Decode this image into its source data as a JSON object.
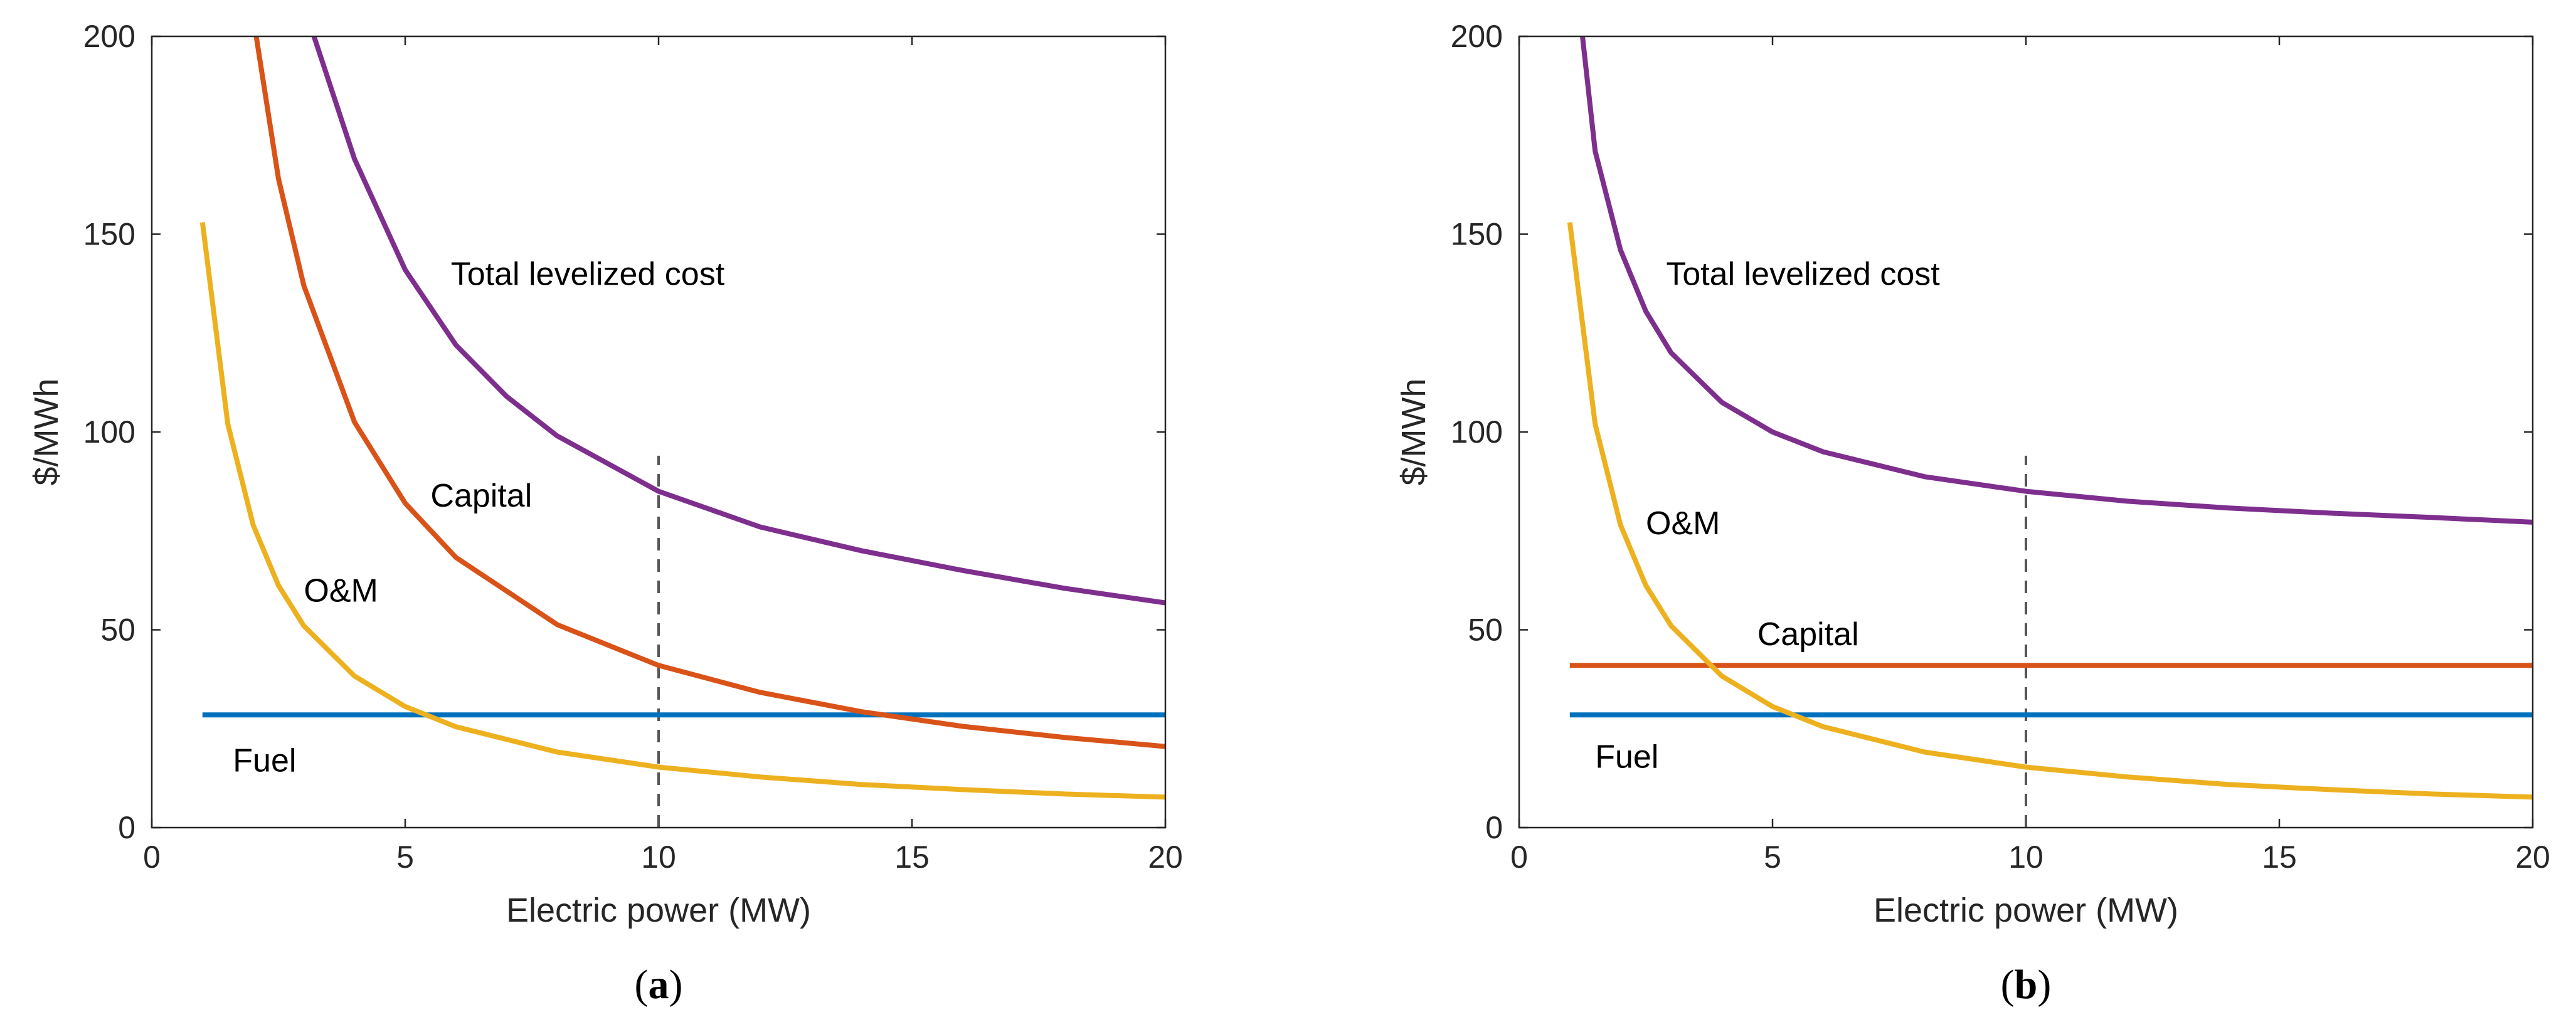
{
  "chart_data": [
    {
      "id": "a",
      "type": "line",
      "panel_label": "a",
      "xlabel": "Electric power (MW)",
      "ylabel": "$/MWh",
      "xlim": [
        0,
        20
      ],
      "ylim": [
        0,
        200
      ],
      "xticks": [
        0,
        5,
        10,
        15,
        20
      ],
      "yticks": [
        0,
        50,
        100,
        150,
        200
      ],
      "series": [
        {
          "name": "Fuel",
          "color": "#0072BD",
          "x": [
            1,
            20
          ],
          "y": [
            28.5,
            28.5
          ]
        },
        {
          "name": "Capital",
          "color": "#D95319",
          "x": [
            2,
            2.5,
            3,
            4,
            5,
            6,
            8,
            10,
            12,
            14,
            16,
            18,
            20
          ],
          "y": [
            205,
            164,
            137,
            102.5,
            82,
            68.3,
            51.3,
            41,
            34.2,
            29.3,
            25.6,
            22.8,
            20.5
          ]
        },
        {
          "name": "O&M",
          "color": "#EDB120",
          "x": [
            1,
            1.5,
            2,
            2.5,
            3,
            4,
            5,
            6,
            8,
            10,
            12,
            14,
            16,
            18,
            20
          ],
          "y": [
            153,
            102,
            76.5,
            61.2,
            51,
            38.3,
            30.6,
            25.5,
            19.1,
            15.3,
            12.8,
            10.9,
            9.6,
            8.5,
            7.7
          ]
        },
        {
          "name": "Total levelized cost",
          "color": "#7E2F8E",
          "x": [
            3.2,
            4,
            5,
            6,
            7,
            8,
            10,
            12,
            14,
            16,
            18,
            20
          ],
          "y": [
            200,
            169,
            141,
            122,
            109,
            99,
            85,
            76,
            70,
            65,
            60.5,
            56.8
          ]
        }
      ],
      "vline": {
        "x": 10,
        "y_top": 94
      },
      "annotations": [
        {
          "text": "Total levelized cost",
          "x": 5.9,
          "y": 140
        },
        {
          "text": "Capital",
          "x": 5.5,
          "y": 84
        },
        {
          "text": "O&M",
          "x": 3.0,
          "y": 60
        },
        {
          "text": "Fuel",
          "x": 1.6,
          "y": 17
        }
      ]
    },
    {
      "id": "b",
      "type": "line",
      "panel_label": "b",
      "xlabel": "Electric power (MW)",
      "ylabel": "$/MWh",
      "xlim": [
        0,
        20
      ],
      "ylim": [
        0,
        200
      ],
      "xticks": [
        0,
        5,
        10,
        15,
        20
      ],
      "yticks": [
        0,
        50,
        100,
        150,
        200
      ],
      "series": [
        {
          "name": "Fuel",
          "color": "#0072BD",
          "x": [
            1,
            20
          ],
          "y": [
            28.5,
            28.5
          ]
        },
        {
          "name": "Capital",
          "color": "#D95319",
          "x": [
            1,
            20
          ],
          "y": [
            41,
            41
          ]
        },
        {
          "name": "O&M",
          "color": "#EDB120",
          "x": [
            1,
            1.5,
            2,
            2.5,
            3,
            4,
            5,
            6,
            8,
            10,
            12,
            14,
            16,
            18,
            20
          ],
          "y": [
            153,
            102,
            76.5,
            61.2,
            51,
            38.3,
            30.6,
            25.5,
            19.1,
            15.3,
            12.8,
            10.9,
            9.6,
            8.5,
            7.7
          ]
        },
        {
          "name": "Total levelized cost",
          "color": "#7E2F8E",
          "x": [
            1.25,
            1.5,
            2,
            2.5,
            3,
            4,
            5,
            6,
            8,
            10,
            12,
            14,
            16,
            18,
            20
          ],
          "y": [
            200,
            171,
            146,
            130.5,
            120,
            107.5,
            100,
            95,
            88.7,
            85,
            82.5,
            80.8,
            79.5,
            78.4,
            77.2
          ]
        }
      ],
      "vline": {
        "x": 10,
        "y_top": 94
      },
      "annotations": [
        {
          "text": "Total levelized cost",
          "x": 2.9,
          "y": 140
        },
        {
          "text": "O&M",
          "x": 2.5,
          "y": 77
        },
        {
          "text": "Capital",
          "x": 4.7,
          "y": 49
        },
        {
          "text": "Fuel",
          "x": 1.5,
          "y": 18
        }
      ]
    }
  ]
}
